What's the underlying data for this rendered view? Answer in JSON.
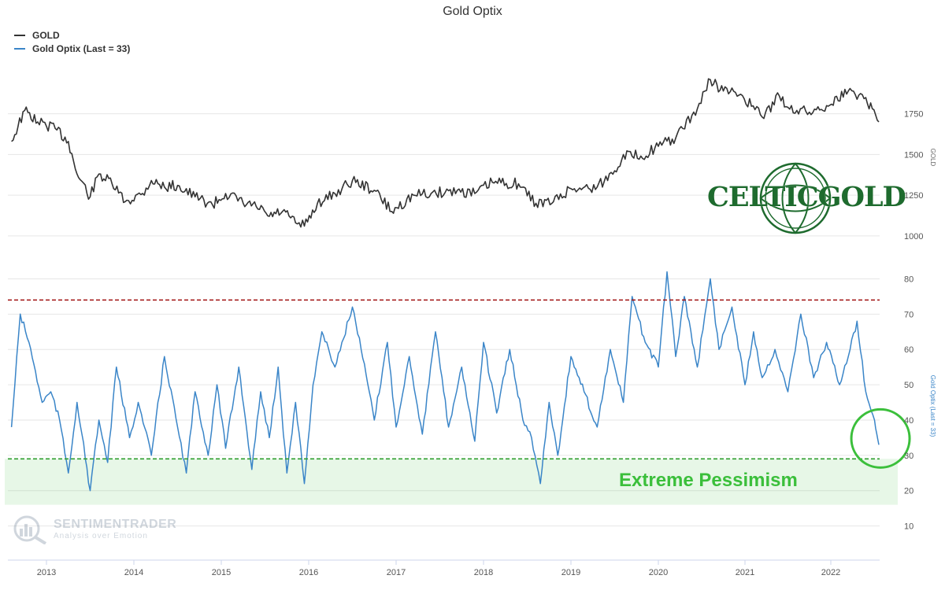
{
  "chart_data": [
    {
      "type": "line",
      "title": "Gold Optix",
      "legend": [
        {
          "name": "GOLD",
          "color": "#333333"
        },
        {
          "name": "Gold Optix (Last = 33)",
          "color": "#3a85c8"
        }
      ],
      "x_ticks": [
        "2013",
        "2014",
        "2015",
        "2016",
        "2017",
        "2018",
        "2019",
        "2020",
        "2021",
        "2022"
      ],
      "panels": [
        {
          "name": "GOLD",
          "ylabel": "GOLD",
          "y_ticks": [
            1000,
            1250,
            1500,
            1750
          ],
          "ylim": [
            975,
            1990
          ],
          "series": [
            {
              "name": "GOLD",
              "color": "#333333",
              "x": [
                2012.6,
                2012.75,
                2012.9,
                2013.1,
                2013.25,
                2013.35,
                2013.5,
                2013.6,
                2013.75,
                2013.9,
                2014.1,
                2014.2,
                2014.35,
                2014.5,
                2014.7,
                2014.9,
                2015.05,
                2015.25,
                2015.4,
                2015.55,
                2015.7,
                2015.85,
                2015.95,
                2016.1,
                2016.3,
                2016.5,
                2016.75,
                2016.95,
                2017.2,
                2017.4,
                2017.7,
                2017.9,
                2018.1,
                2018.4,
                2018.6,
                2018.8,
                2019.0,
                2019.3,
                2019.5,
                2019.6,
                2019.8,
                2020.0,
                2020.2,
                2020.45,
                2020.6,
                2020.75,
                2020.95,
                2021.2,
                2021.4,
                2021.5,
                2021.75,
                2021.95,
                2022.2,
                2022.4,
                2022.55
              ],
              "values": [
                1580,
                1770,
                1700,
                1660,
                1580,
                1380,
                1240,
                1380,
                1320,
                1210,
                1260,
                1340,
                1300,
                1310,
                1240,
                1190,
                1260,
                1200,
                1180,
                1120,
                1150,
                1080,
                1060,
                1200,
                1260,
                1340,
                1280,
                1150,
                1250,
                1260,
                1280,
                1260,
                1330,
                1320,
                1200,
                1210,
                1290,
                1300,
                1400,
                1500,
                1490,
                1550,
                1600,
                1780,
                1960,
                1890,
                1870,
                1730,
                1860,
                1790,
                1760,
                1800,
                1890,
                1850,
                1700
              ]
            }
          ]
        },
        {
          "name": "Gold Optix",
          "ylabel": "Gold Optix (Last = 33)",
          "y_ticks": [
            10,
            20,
            30,
            40,
            50,
            60,
            70,
            80
          ],
          "ylim": [
            3,
            85
          ],
          "reference_lines": [
            {
              "value": 74,
              "color": "#a01010",
              "style": "dashed"
            },
            {
              "value": 29,
              "color": "#2e9e2e",
              "style": "dashed"
            }
          ],
          "shaded_band": {
            "from": 16,
            "to": 29,
            "color": "#3bbf3b"
          },
          "series": [
            {
              "name": "Gold Optix (Last = 33)",
              "color": "#3a85c8",
              "x": [
                2012.6,
                2012.7,
                2012.8,
                2012.95,
                2013.05,
                2013.15,
                2013.25,
                2013.35,
                2013.5,
                2013.6,
                2013.7,
                2013.8,
                2013.95,
                2014.05,
                2014.2,
                2014.35,
                2014.5,
                2014.6,
                2014.7,
                2014.85,
                2014.95,
                2015.05,
                2015.2,
                2015.35,
                2015.45,
                2015.55,
                2015.65,
                2015.75,
                2015.85,
                2015.95,
                2016.05,
                2016.15,
                2016.3,
                2016.5,
                2016.6,
                2016.75,
                2016.9,
                2017.0,
                2017.15,
                2017.3,
                2017.45,
                2017.6,
                2017.75,
                2017.9,
                2018.0,
                2018.15,
                2018.3,
                2018.45,
                2018.55,
                2018.65,
                2018.75,
                2018.85,
                2019.0,
                2019.15,
                2019.3,
                2019.45,
                2019.6,
                2019.7,
                2019.85,
                2020.0,
                2020.1,
                2020.2,
                2020.3,
                2020.45,
                2020.6,
                2020.7,
                2020.85,
                2021.0,
                2021.1,
                2021.2,
                2021.35,
                2021.5,
                2021.65,
                2021.8,
                2021.95,
                2022.1,
                2022.2,
                2022.3,
                2022.4,
                2022.5,
                2022.55
              ],
              "values": [
                38,
                70,
                62,
                45,
                48,
                40,
                25,
                45,
                20,
                40,
                28,
                55,
                35,
                45,
                30,
                58,
                38,
                25,
                48,
                30,
                50,
                32,
                55,
                26,
                48,
                35,
                55,
                25,
                45,
                22,
                50,
                65,
                55,
                72,
                60,
                40,
                62,
                38,
                58,
                36,
                65,
                38,
                55,
                34,
                62,
                42,
                60,
                40,
                35,
                22,
                45,
                30,
                58,
                48,
                38,
                60,
                45,
                75,
                62,
                55,
                82,
                58,
                75,
                55,
                80,
                60,
                72,
                50,
                65,
                52,
                60,
                48,
                70,
                52,
                62,
                50,
                58,
                68,
                48,
                40,
                33
              ]
            }
          ]
        }
      ]
    }
  ],
  "annotations": {
    "zone_label": "Extreme Pessimism"
  },
  "logos": {
    "celtic": "CELTICGOLD",
    "sentiment_brand": "SENTIMENTRADER",
    "sentiment_tagline": "Analysis over Emotion"
  }
}
